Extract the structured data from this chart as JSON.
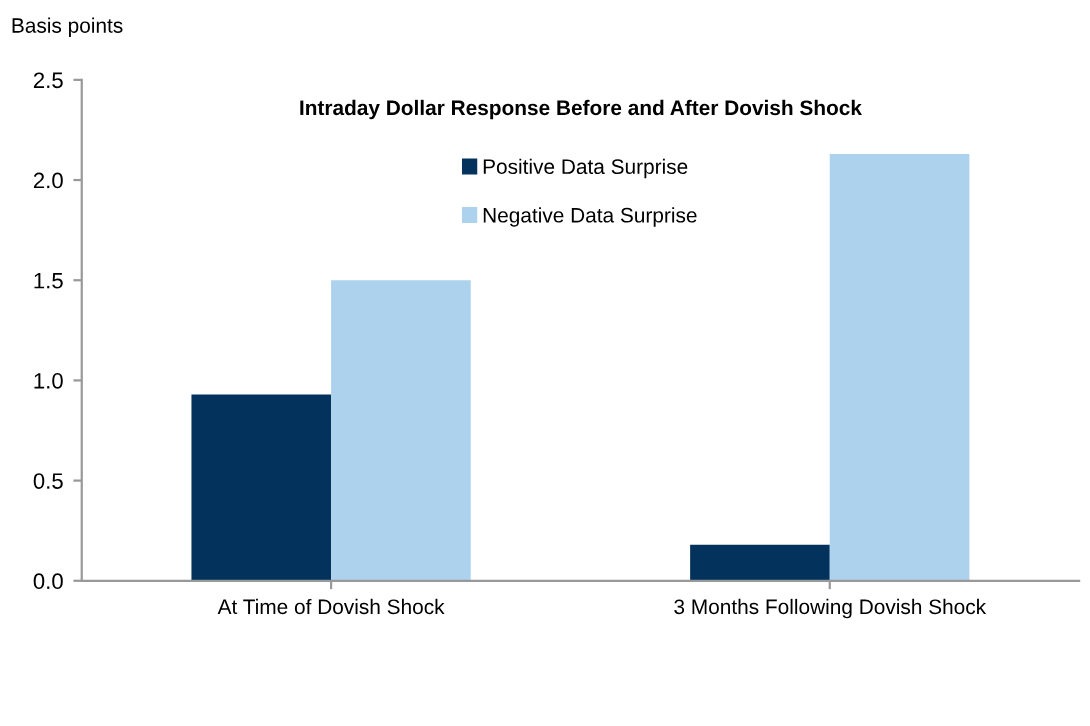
{
  "chart_data": {
    "type": "bar",
    "title": "Intraday Dollar Response Before and After Dovish Shock",
    "ylabel": "Basis points",
    "categories": [
      "At Time of Dovish Shock",
      "3 Months Following Dovish Shock"
    ],
    "series": [
      {
        "name": "Positive Data Surprise",
        "color": "#03325c",
        "values": [
          0.93,
          0.18
        ]
      },
      {
        "name": "Negative Data Surprise",
        "color": "#acd2ee",
        "values": [
          1.5,
          2.13
        ]
      }
    ],
    "ylim": [
      0,
      2.5
    ],
    "yticks": [
      {
        "value": 0,
        "label": "0.0"
      },
      0.5,
      {
        "value": 1,
        "label": "1.0"
      },
      1.5,
      {
        "value": 2,
        "label": "2.0"
      },
      2.5
    ],
    "grid": false,
    "legend": "top"
  }
}
